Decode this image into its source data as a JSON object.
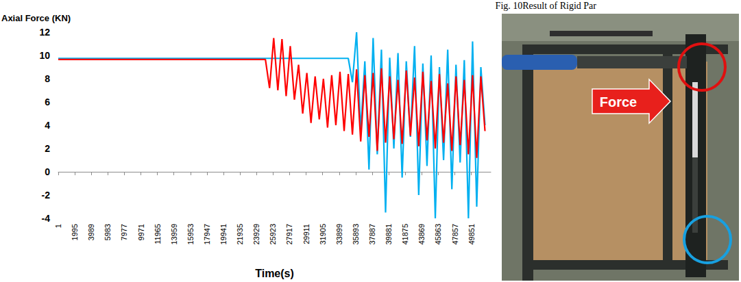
{
  "caption": "Fig. 10Result of Rigid Par",
  "chart_data": {
    "type": "line",
    "y_label": "Axial Force (KN)",
    "x_label": "Time(s)",
    "x": [
      1,
      25000,
      25500,
      26000,
      26500,
      27000,
      27500,
      28000,
      28500,
      29000,
      29500,
      30000,
      30500,
      31000,
      31500,
      32000,
      32500,
      33000,
      33500,
      34000,
      34500,
      35000,
      35500,
      36000,
      36500,
      37000,
      37500,
      38000,
      38500,
      39000,
      39500,
      40000,
      40500,
      41000,
      41500,
      42000,
      42500,
      43000,
      43500,
      44000,
      44500,
      45000,
      45500,
      46000,
      46500,
      47000,
      47500,
      48000,
      48500,
      49000,
      49500,
      50000,
      50500,
      51000,
      51500
    ],
    "xlim": [
      1,
      52200
    ],
    "xticks": [
      1,
      1995,
      3989,
      5983,
      7977,
      9971,
      11965,
      13959,
      15953,
      17947,
      19941,
      21935,
      23929,
      25923,
      27917,
      29911,
      31905,
      33899,
      35893,
      37887,
      39881,
      41875,
      43869,
      45863,
      47857,
      49851
    ],
    "ylim": [
      -4,
      12
    ],
    "yticks": [
      -4,
      -2,
      0,
      2,
      4,
      6,
      8,
      10,
      12
    ],
    "grid": false,
    "series": [
      {
        "color": "#00b0f0",
        "values": [
          9.75,
          9.75,
          9.75,
          9.75,
          9.75,
          9.75,
          9.75,
          9.75,
          9.75,
          9.75,
          9.75,
          9.75,
          9.75,
          9.75,
          9.75,
          9.75,
          9.75,
          9.75,
          9.75,
          9.75,
          9.75,
          9.75,
          7.7,
          12,
          3.5,
          9.5,
          0.2,
          11.5,
          1.5,
          10.5,
          -3.5,
          9.8,
          2.0,
          10.2,
          -0.5,
          9.5,
          3.0,
          10.8,
          -2.0,
          9.3,
          0.5,
          10.0,
          -4.0,
          9.0,
          1.0,
          10.5,
          -1.5,
          9.2,
          0.8,
          9.6,
          -4.0,
          11.2,
          -3.0,
          9.0,
          4.0
        ]
      },
      {
        "color": "#ff0000",
        "values": [
          9.65,
          9.65,
          7.2,
          11.5,
          7.0,
          11.4,
          6.5,
          10.8,
          6.2,
          9.2,
          5.0,
          8.5,
          4.2,
          8.2,
          4.5,
          8.0,
          3.8,
          8.3,
          4.0,
          8.6,
          3.5,
          8.4,
          3.2,
          8.8,
          2.6,
          8.3,
          3.0,
          8.5,
          1.8,
          8.9,
          2.5,
          8.2,
          2.8,
          7.9,
          2.4,
          8.7,
          3.1,
          8.1,
          2.2,
          8.6,
          2.7,
          7.8,
          2.0,
          8.4,
          2.5,
          7.6,
          1.8,
          8.2,
          2.3,
          7.9,
          1.5,
          8.3,
          1.2,
          8.2,
          3.5
        ]
      }
    ]
  },
  "photo": {
    "arrow_label": "Force"
  }
}
